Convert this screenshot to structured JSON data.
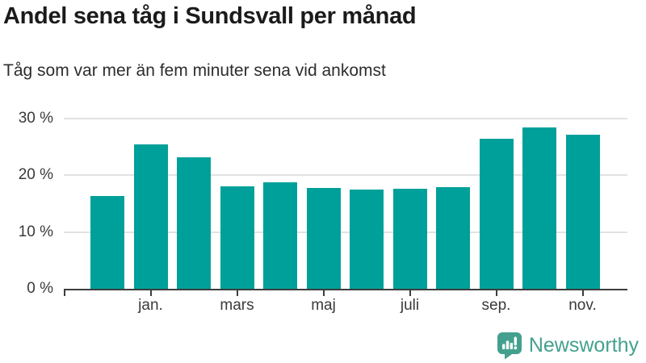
{
  "title": "Andel sena tåg i Sundsvall per månad",
  "subtitle": "Tåg som var mer än fem minuter sena vid ankomst",
  "footer": {
    "brand": "Newsworthy"
  },
  "colors": {
    "bar": "#00a09a",
    "brand": "#44a08e",
    "grid": "#e2e2e2",
    "axis": "#3d3d3d",
    "label": "#3a3a3a"
  },
  "chart_data": {
    "type": "bar",
    "title": "Andel sena tåg i Sundsvall per månad",
    "subtitle": "Tåg som var mer än fem minuter sena vid ankomst",
    "unit": "%",
    "values": [
      16.3,
      25.5,
      23.2,
      18.1,
      18.7,
      17.8,
      17.5,
      17.6,
      17.9,
      26.5,
      28.4,
      27.2
    ],
    "x_labels": [
      "",
      "jan.",
      "",
      "mars",
      "",
      "maj",
      "",
      "juli",
      "",
      "sep.",
      "",
      "nov."
    ],
    "y_ticks": [
      0,
      10,
      20,
      30
    ],
    "y_tick_labels": [
      "0 %",
      "10 %",
      "20 %",
      "30 %"
    ],
    "ylim": [
      0,
      30
    ],
    "grid": true,
    "legend": false,
    "bar_color": "#00a09a"
  }
}
